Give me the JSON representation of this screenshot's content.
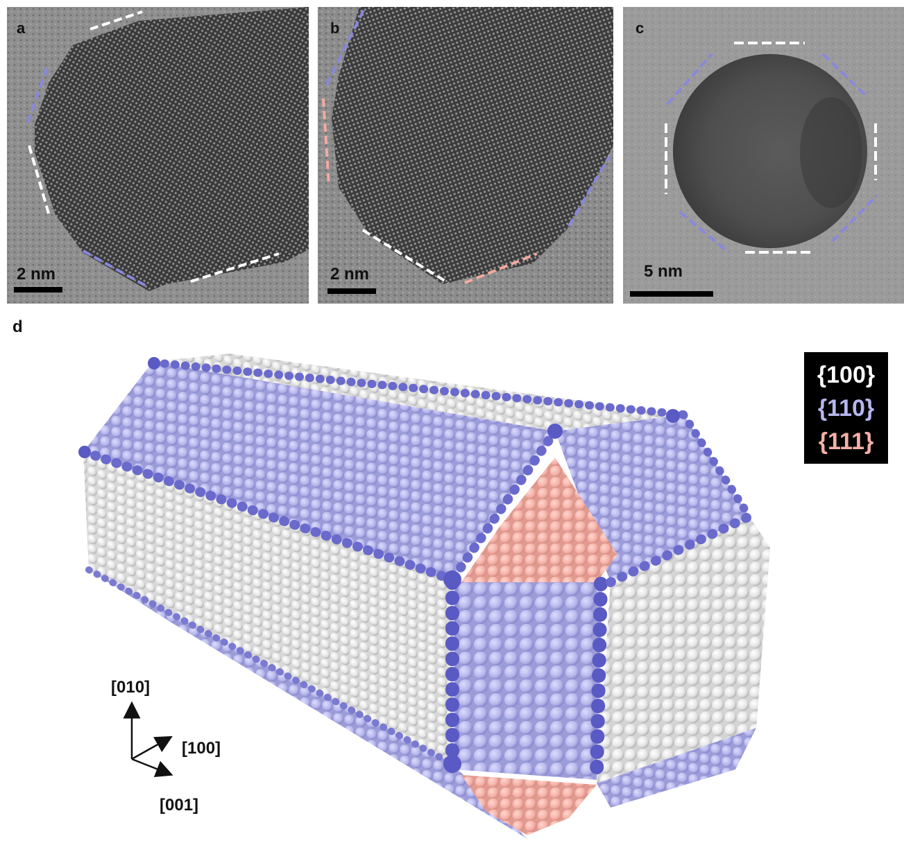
{
  "panels": {
    "a": {
      "label": "a",
      "scale": "2 nm"
    },
    "b": {
      "label": "b",
      "scale": "2 nm"
    },
    "c": {
      "label": "c",
      "scale": "5 nm"
    },
    "d": {
      "label": "d"
    }
  },
  "legend": [
    {
      "text": "{100}",
      "color": "#ffffff"
    },
    {
      "text": "{110}",
      "color": "#b6b6ee"
    },
    {
      "text": "{111}",
      "color": "#f3b0a6"
    }
  ],
  "axes": {
    "y": "[010]",
    "x": "[100]",
    "z": "[001]"
  },
  "colors": {
    "facet_100": "#f2f2f2",
    "facet_110": "#b9b9ea",
    "facet_111": "#f4b2a8",
    "edge_atoms": "#5a5ac4",
    "tem_bg": "#8a8a8a"
  }
}
